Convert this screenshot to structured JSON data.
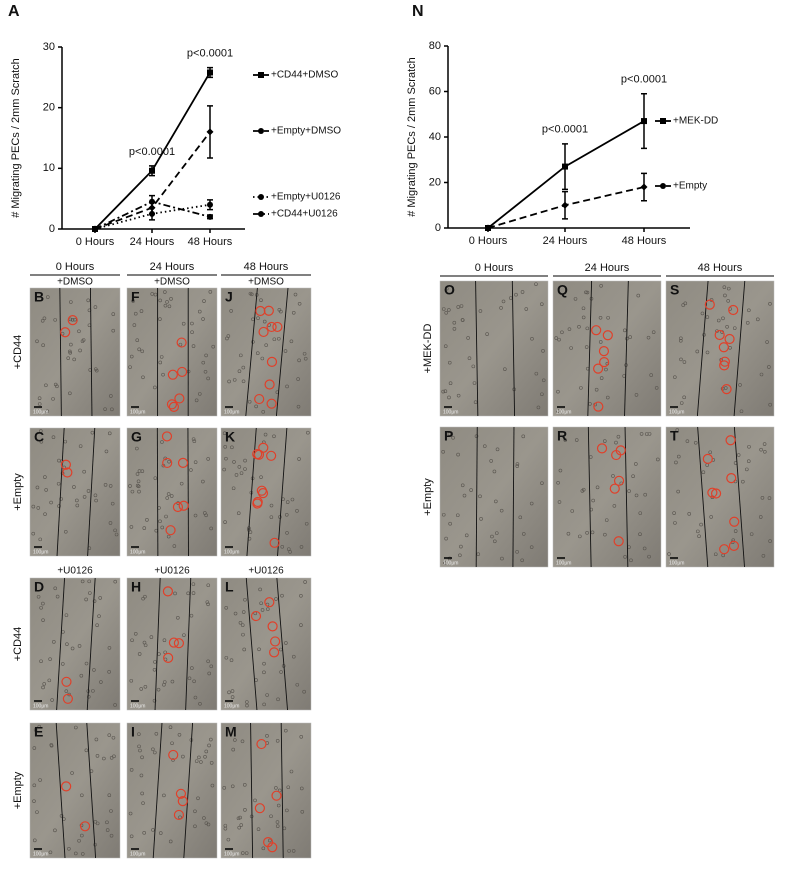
{
  "chart_data": [
    {
      "type": "line",
      "panel_label": "A",
      "y_label": "# Migrating PECs / 2mm Scratch",
      "categories": [
        "0 Hours",
        "24 Hours",
        "48 Hours"
      ],
      "ylim": [
        0,
        30
      ],
      "yticks": [
        0,
        10,
        20,
        30
      ],
      "series": [
        {
          "name": "+CD44+DMSO",
          "color": "#000000",
          "dash": "solid",
          "marker": "square",
          "values": [
            0,
            9.6,
            25.8
          ],
          "errors": [
            0,
            0.8,
            0.8
          ]
        },
        {
          "name": "+Empty+DMSO",
          "color": "#000000",
          "dash": "dashed",
          "marker": "diamond",
          "values": [
            0,
            3.5,
            16
          ],
          "errors": [
            0,
            1,
            4.3
          ]
        },
        {
          "name": "+Empty+U0126",
          "color": "#000000",
          "dash": "dotted",
          "marker": "circle",
          "values": [
            0,
            2.5,
            4
          ],
          "errors": [
            0,
            1,
            0.8
          ]
        },
        {
          "name": "+CD44+U0126",
          "color": "#000000",
          "dash": "dashdot",
          "marker": "circle",
          "values": [
            0,
            4.5,
            2
          ],
          "errors": [
            0,
            1,
            0.3
          ]
        }
      ],
      "annotations": [
        "p<0.0001",
        "p<0.0001"
      ]
    },
    {
      "type": "line",
      "panel_label": "N",
      "y_label": "# Migrating PECs / 2mm Scratch",
      "categories": [
        "0 Hours",
        "24 Hours",
        "48 Hours"
      ],
      "ylim": [
        0,
        80
      ],
      "yticks": [
        0,
        20,
        40,
        60,
        80
      ],
      "series": [
        {
          "name": "+MEK-DD",
          "color": "#000000",
          "dash": "solid",
          "marker": "square",
          "values": [
            0,
            27,
            47
          ],
          "errors": [
            0,
            10,
            12
          ]
        },
        {
          "name": "+Empty",
          "color": "#000000",
          "dash": "dashed",
          "marker": "diamond",
          "values": [
            0,
            10,
            18
          ],
          "errors": [
            0,
            6,
            6
          ]
        }
      ],
      "annotations": [
        "p<0.0001",
        "p<0.0001"
      ]
    }
  ],
  "image_grids": [
    {
      "columns": [
        "0 Hours",
        "24 Hours",
        "48 Hours"
      ],
      "scale_bar": "100μm",
      "groups": [
        {
          "treatment": "+DMSO",
          "rows": [
            {
              "label": "+CD44",
              "panels": [
                "B",
                "F",
                "J"
              ]
            },
            {
              "label": "+Empty",
              "panels": [
                "C",
                "G",
                "K"
              ]
            }
          ]
        },
        {
          "treatment": "+U0126",
          "rows": [
            {
              "label": "+CD44",
              "panels": [
                "D",
                "H",
                "L"
              ]
            },
            {
              "label": "+Empty",
              "panels": [
                "E",
                "I",
                "M"
              ]
            }
          ]
        }
      ]
    },
    {
      "columns": [
        "0 Hours",
        "24 Hours",
        "48 Hours"
      ],
      "scale_bar": "100μm",
      "groups": [
        {
          "rows": [
            {
              "label": "+MEK-DD",
              "panels": [
                "O",
                "Q",
                "S"
              ]
            },
            {
              "label": "+Empty",
              "panels": [
                "P",
                "R",
                "T"
              ]
            }
          ]
        }
      ]
    }
  ]
}
